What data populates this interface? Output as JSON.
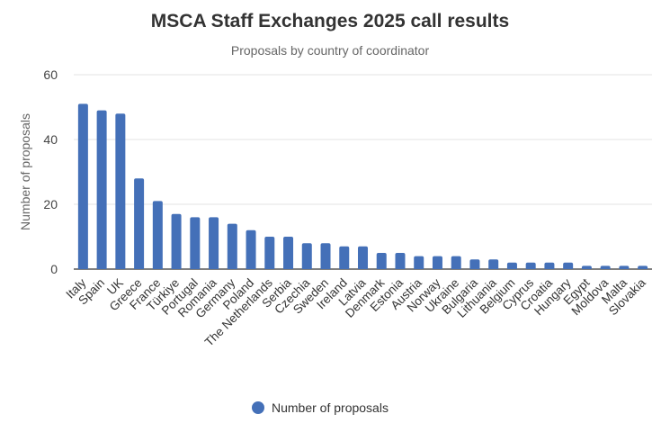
{
  "chart_data": {
    "type": "bar",
    "title": "MSCA Staff Exchanges 2025 call results",
    "subtitle": "Proposals by country of coordinator",
    "xlabel": "",
    "ylabel": "Number of proposals",
    "ylim": [
      0,
      60
    ],
    "yticks": [
      0,
      20,
      40,
      60
    ],
    "grid": true,
    "legend": {
      "position": "bottom",
      "entries": [
        "Number of proposals"
      ]
    },
    "color": "#4470b8",
    "categories": [
      "Italy",
      "Spain",
      "UK",
      "Greece",
      "France",
      "Türkiye",
      "Portugal",
      "Romania",
      "Germany",
      "Poland",
      "The Netherlands",
      "Serbia",
      "Czechia",
      "Sweden",
      "Ireland",
      "Latvia",
      "Denmark",
      "Estonia",
      "Austria",
      "Norway",
      "Ukraine",
      "Bulgaria",
      "Lithuania",
      "Belgium",
      "Cyprus",
      "Croatia",
      "Hungary",
      "Egypt",
      "Moldova",
      "Malta",
      "Slovakia"
    ],
    "series": [
      {
        "name": "Number of proposals",
        "values": [
          51,
          49,
          48,
          28,
          21,
          17,
          16,
          16,
          14,
          12,
          10,
          10,
          8,
          8,
          7,
          7,
          5,
          5,
          4,
          4,
          4,
          3,
          3,
          2,
          2,
          2,
          2,
          1,
          1,
          1,
          1
        ]
      }
    ]
  }
}
